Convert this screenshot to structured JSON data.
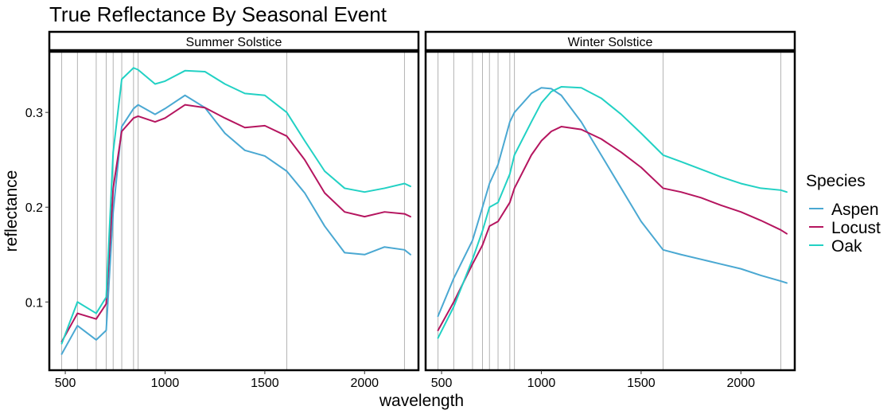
{
  "chart_data": {
    "type": "line",
    "title": "True Reflectance By Seasonal Event",
    "xlabel": "wavelength",
    "ylabel": "reflectance",
    "xlim": [
      420,
      2270
    ],
    "ylim": [
      0.028,
      0.364
    ],
    "x_ticks": [
      500,
      1000,
      1500,
      2000
    ],
    "x_tick_labels": [
      "500",
      "1000",
      "1500",
      "2000"
    ],
    "y_ticks": [
      0.1,
      0.2,
      0.3
    ],
    "y_tick_labels": [
      "0.1",
      "0.2",
      "0.3"
    ],
    "band_lines": [
      482,
      561,
      655,
      705,
      740,
      783,
      842,
      865,
      1610,
      2200
    ],
    "grid": false,
    "legend": {
      "title": "Species",
      "placement": "right",
      "entries": [
        "Aspen",
        "Locust",
        "Oak"
      ]
    },
    "colors": {
      "Aspen": "#4aa8d2",
      "Locust": "#b5155f",
      "Oak": "#22d1c4"
    },
    "panels": [
      {
        "strip": "Summer Solstice",
        "series": [
          {
            "name": "Aspen",
            "x": [
              482,
              561,
              655,
              705,
              740,
              783,
              842,
              865,
              950,
              1000,
              1100,
              1200,
              1300,
              1400,
              1500,
              1610,
              1700,
              1800,
              1900,
              2000,
              2100,
              2200,
              2230
            ],
            "y": [
              0.045,
              0.075,
              0.06,
              0.07,
              0.195,
              0.285,
              0.304,
              0.308,
              0.298,
              0.304,
              0.318,
              0.305,
              0.278,
              0.26,
              0.254,
              0.238,
              0.215,
              0.18,
              0.152,
              0.15,
              0.158,
              0.155,
              0.15
            ]
          },
          {
            "name": "Locust",
            "x": [
              482,
              561,
              655,
              705,
              740,
              783,
              842,
              865,
              950,
              1000,
              1100,
              1200,
              1300,
              1400,
              1500,
              1610,
              1700,
              1800,
              1900,
              2000,
              2100,
              2200,
              2230
            ],
            "y": [
              0.058,
              0.088,
              0.082,
              0.098,
              0.22,
              0.28,
              0.294,
              0.296,
              0.29,
              0.294,
              0.308,
              0.305,
              0.294,
              0.284,
              0.286,
              0.275,
              0.25,
              0.215,
              0.195,
              0.19,
              0.195,
              0.193,
              0.19
            ]
          },
          {
            "name": "Oak",
            "x": [
              482,
              561,
              655,
              705,
              740,
              783,
              842,
              865,
              950,
              1000,
              1100,
              1200,
              1300,
              1400,
              1500,
              1610,
              1700,
              1800,
              1900,
              2000,
              2100,
              2200,
              2230
            ],
            "y": [
              0.056,
              0.1,
              0.088,
              0.105,
              0.258,
              0.335,
              0.347,
              0.345,
              0.33,
              0.333,
              0.344,
              0.343,
              0.33,
              0.32,
              0.318,
              0.3,
              0.27,
              0.238,
              0.22,
              0.216,
              0.22,
              0.225,
              0.222
            ]
          }
        ]
      },
      {
        "strip": "Winter Solstice",
        "series": [
          {
            "name": "Aspen",
            "x": [
              482,
              561,
              655,
              705,
              740,
              783,
              842,
              865,
              950,
              1000,
              1050,
              1100,
              1200,
              1300,
              1400,
              1500,
              1610,
              1700,
              1800,
              1900,
              2000,
              2100,
              2200,
              2230
            ],
            "y": [
              0.085,
              0.125,
              0.165,
              0.2,
              0.225,
              0.245,
              0.29,
              0.3,
              0.32,
              0.326,
              0.325,
              0.318,
              0.29,
              0.255,
              0.22,
              0.185,
              0.155,
              0.15,
              0.145,
              0.14,
              0.135,
              0.128,
              0.122,
              0.12
            ]
          },
          {
            "name": "Locust",
            "x": [
              482,
              561,
              655,
              705,
              740,
              783,
              842,
              865,
              950,
              1000,
              1050,
              1100,
              1200,
              1300,
              1400,
              1500,
              1610,
              1700,
              1800,
              1900,
              2000,
              2100,
              2200,
              2230
            ],
            "y": [
              0.07,
              0.1,
              0.14,
              0.16,
              0.18,
              0.185,
              0.205,
              0.22,
              0.255,
              0.27,
              0.28,
              0.285,
              0.282,
              0.272,
              0.258,
              0.242,
              0.22,
              0.216,
              0.21,
              0.202,
              0.195,
              0.186,
              0.176,
              0.172
            ]
          },
          {
            "name": "Oak",
            "x": [
              482,
              561,
              655,
              705,
              740,
              783,
              842,
              865,
              950,
              1000,
              1050,
              1100,
              1200,
              1300,
              1400,
              1500,
              1610,
              1700,
              1800,
              1900,
              2000,
              2100,
              2200,
              2230
            ],
            "y": [
              0.062,
              0.095,
              0.145,
              0.175,
              0.2,
              0.205,
              0.235,
              0.255,
              0.29,
              0.31,
              0.322,
              0.327,
              0.326,
              0.315,
              0.298,
              0.278,
              0.255,
              0.248,
              0.24,
              0.232,
              0.225,
              0.22,
              0.218,
              0.216
            ]
          }
        ]
      }
    ]
  }
}
